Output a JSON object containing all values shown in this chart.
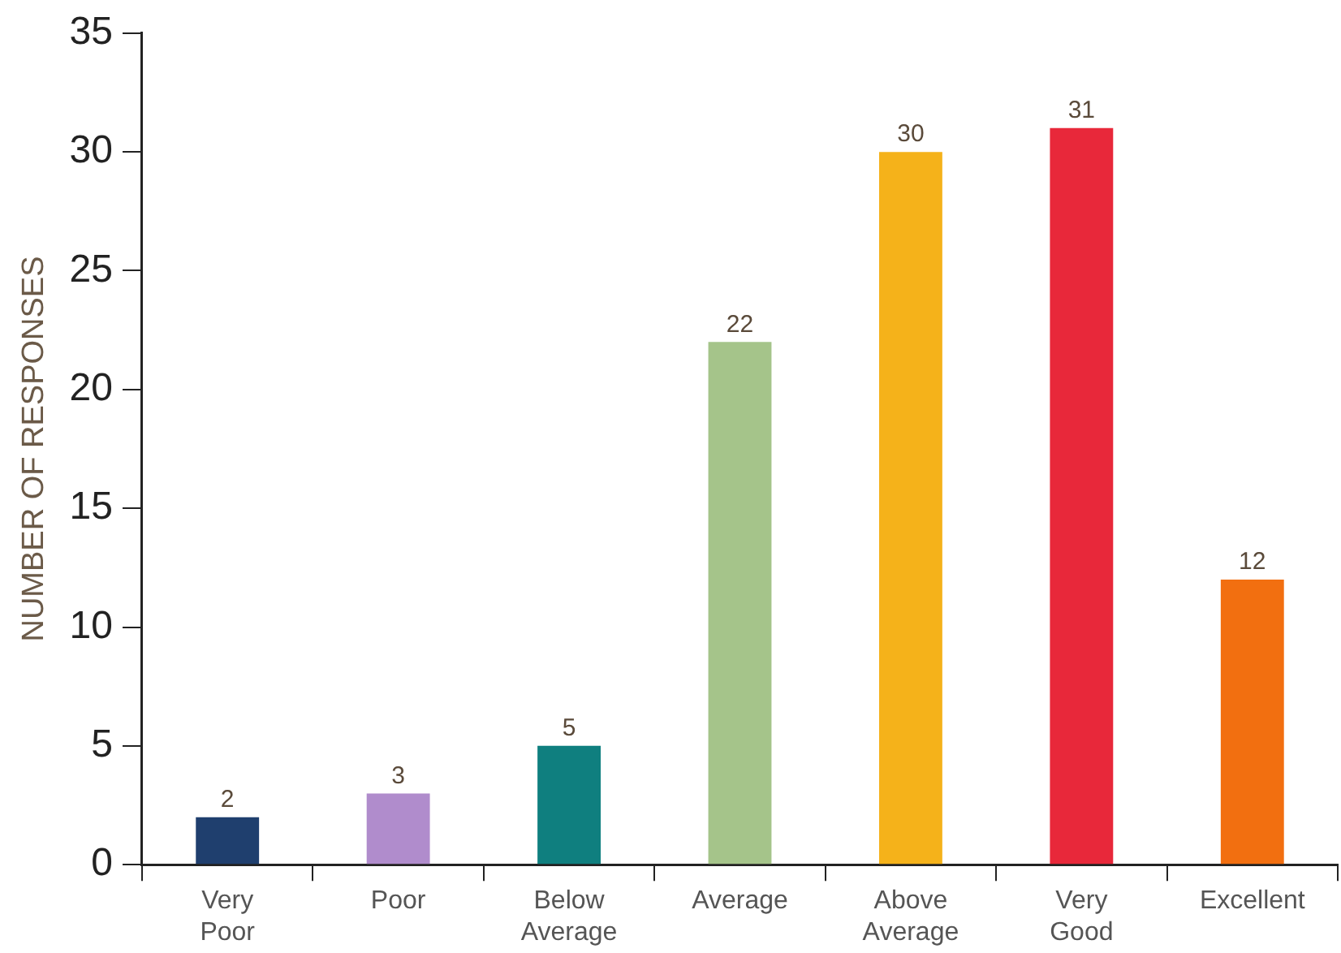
{
  "chart_data": {
    "type": "bar",
    "ylabel": "NUMBER OF RESPONSES",
    "categories": [
      "Very Poor",
      "Poor",
      "Below Average",
      "Average",
      "Above Average",
      "Very Good",
      "Excellent"
    ],
    "values": [
      2,
      3,
      5,
      22,
      30,
      31,
      12
    ],
    "colors": [
      "#1f3f6e",
      "#b08ccc",
      "#0f7f7f",
      "#a5c48a",
      "#f5b21a",
      "#e8283a",
      "#f26f10"
    ],
    "ylim": [
      0,
      35
    ],
    "yticks": [
      0,
      5,
      10,
      15,
      20,
      25,
      30,
      35
    ],
    "grid": false,
    "legend": false,
    "data_labels": true
  }
}
